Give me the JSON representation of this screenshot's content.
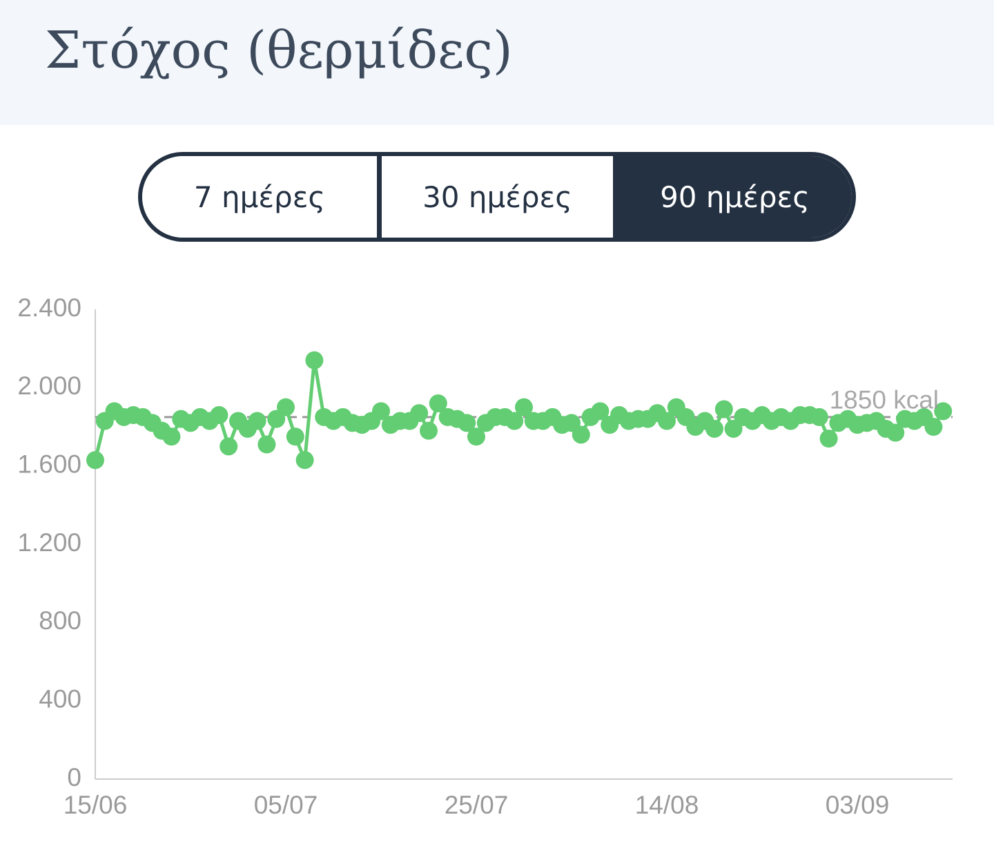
{
  "header": {
    "title": "Στόχος (θερμίδες)"
  },
  "tabs": {
    "items": [
      "7 ημέρες",
      "30 ημέρες",
      "90 ημέρες"
    ],
    "selected": 2
  },
  "chart_data": {
    "type": "line",
    "color": "#62cd72",
    "categories": [
      "15/06",
      null,
      null,
      null,
      null,
      null,
      null,
      null,
      null,
      null,
      null,
      null,
      null,
      null,
      null,
      null,
      null,
      null,
      null,
      null,
      "05/07",
      null,
      null,
      null,
      null,
      null,
      null,
      null,
      null,
      null,
      null,
      null,
      null,
      null,
      null,
      null,
      null,
      null,
      null,
      null,
      "25/07",
      null,
      null,
      null,
      null,
      null,
      null,
      null,
      null,
      null,
      null,
      null,
      null,
      null,
      null,
      null,
      null,
      null,
      null,
      null,
      "14/08",
      null,
      null,
      null,
      null,
      null,
      null,
      null,
      null,
      null,
      null,
      null,
      null,
      null,
      null,
      null,
      null,
      null,
      null,
      null,
      "03/09",
      null,
      null,
      null,
      null,
      null,
      null,
      null,
      null,
      null
    ],
    "values": [
      1630,
      1830,
      1880,
      1850,
      1860,
      1850,
      1820,
      1780,
      1750,
      1840,
      1820,
      1850,
      1830,
      1860,
      1700,
      1830,
      1790,
      1830,
      1710,
      1840,
      1900,
      1750,
      1630,
      2140,
      1850,
      1830,
      1850,
      1820,
      1810,
      1830,
      1880,
      1810,
      1830,
      1830,
      1870,
      1780,
      1920,
      1850,
      1840,
      1820,
      1750,
      1820,
      1850,
      1850,
      1830,
      1900,
      1830,
      1830,
      1850,
      1810,
      1820,
      1760,
      1850,
      1880,
      1810,
      1860,
      1830,
      1840,
      1840,
      1870,
      1830,
      1900,
      1850,
      1800,
      1830,
      1790,
      1890,
      1790,
      1850,
      1830,
      1860,
      1830,
      1850,
      1830,
      1860,
      1860,
      1850,
      1740,
      1820,
      1840,
      1810,
      1820,
      1830,
      1790,
      1770,
      1840,
      1830,
      1850,
      1800,
      1880
    ],
    "ylim": [
      0,
      2400
    ],
    "yticks": [
      0,
      400,
      800,
      {
        "value": 1200,
        "label": "1.200"
      },
      {
        "value": 1600,
        "label": "1.600"
      },
      {
        "value": 2000,
        "label": "2.000"
      },
      {
        "value": 2400,
        "label": "2.400"
      }
    ],
    "reference_line": {
      "value": 1850,
      "label": "1850 kcal"
    }
  }
}
